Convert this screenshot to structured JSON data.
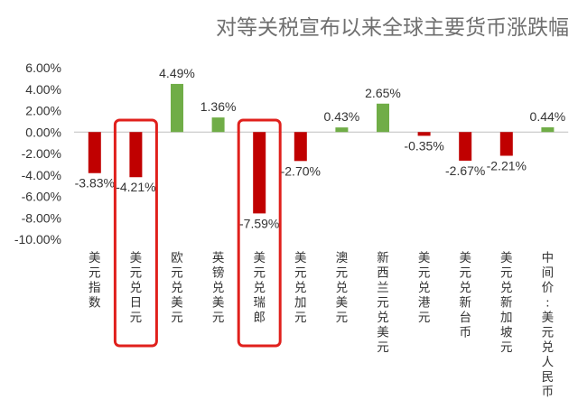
{
  "chart_data": {
    "type": "bar",
    "title": "对等关税宣布以来全球主要货币涨跌幅",
    "categories": [
      "美元指数",
      "美元兑日元",
      "欧元兑美元",
      "英镑兑美元",
      "美元兑瑞郎",
      "美元兑加元",
      "澳元兑美元",
      "新西兰元兑美元",
      "美元兑港元",
      "美元兑新台币",
      "美元兑新加坡元",
      "中间价:美元兑人民币"
    ],
    "values": [
      -3.83,
      -4.21,
      4.49,
      1.36,
      -7.59,
      -2.7,
      0.43,
      2.65,
      -0.35,
      -2.67,
      -2.21,
      0.44
    ],
    "value_labels": [
      "-3.83%",
      "-4.21%",
      "4.49%",
      "1.36%",
      "-7.59%",
      "-2.70%",
      "0.43%",
      "2.65%",
      "-0.35%",
      "-2.67%",
      "-2.21%",
      "0.44%"
    ],
    "ylim": [
      -10,
      6
    ],
    "yticks": [
      6,
      4,
      2,
      0,
      -2,
      -4,
      -6,
      -8,
      -10
    ],
    "ytick_labels": [
      "6.00%",
      "4.00%",
      "2.00%",
      "0.00%",
      "-2.00%",
      "-4.00%",
      "-6.00%",
      "-8.00%",
      "-10.00%"
    ],
    "grid": false,
    "colors": {
      "positive": "#70ad47",
      "negative": "#c00000",
      "highlight_box": "#e0201c"
    },
    "highlighted_categories": [
      "美元兑日元",
      "美元兑瑞郎"
    ]
  }
}
